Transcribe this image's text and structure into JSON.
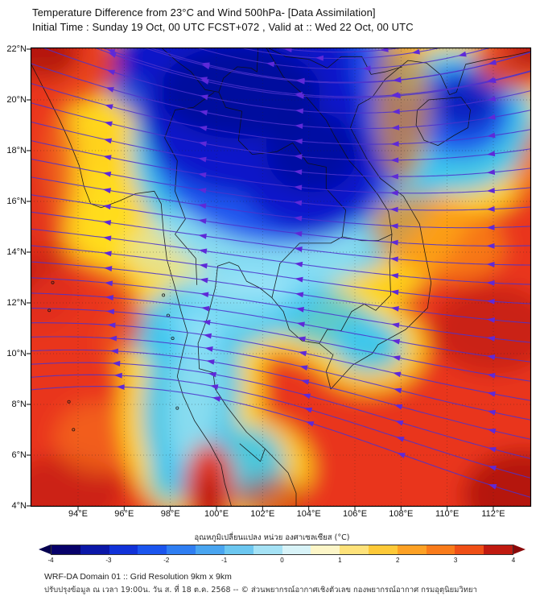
{
  "header": {
    "title_line1": "Temperature Difference from 23°C and Wind 500hPa- [Data Assimilation]",
    "title_line2": "Initial Time : Sunday 19 Oct, 00 UTC FCST+072 , Valid at ::  Wed 22 Oct, 00 UTC"
  },
  "map": {
    "lat_ticks": [
      "22°N",
      "20°N",
      "18°N",
      "16°N",
      "14°N",
      "12°N",
      "10°N",
      "8°N",
      "6°N",
      "4°N"
    ],
    "lon_ticks": [
      "94°E",
      "96°E",
      "98°E",
      "100°E",
      "102°E",
      "104°E",
      "106°E",
      "108°E",
      "110°E",
      "112°E"
    ],
    "wind_line_color": "#4c33cb",
    "wind_arrow_color": "#5e29d8",
    "coast_color": "#101010",
    "field_colors": {
      "deep_blue": "#0813c8",
      "blue": "#1c50ee",
      "cyan": "#38c6f2",
      "pale_cyan": "#cdf2fa",
      "yellow": "#ffd91e",
      "orange": "#fb8d18",
      "red": "#e9341d",
      "dark_red": "#a30e0e"
    }
  },
  "colorbar": {
    "label": "อุณหภูมิเปลี่ยนแปลง หน่วย องศาเซลเซียส (°C)",
    "tick_labels": [
      "-4",
      "-3",
      "-2",
      "-1",
      "0",
      "1",
      "2",
      "3",
      "4"
    ],
    "segment_colors": [
      "#07006a",
      "#0b17a8",
      "#1132d8",
      "#1b55ee",
      "#2f7ef2",
      "#49a5f0",
      "#6cc7f0",
      "#a5e2f5",
      "#d8f3f8",
      "#fdf6c8",
      "#fee27a",
      "#fdc938",
      "#fda124",
      "#f97b1a",
      "#ef4f16",
      "#c01a10"
    ],
    "left_arrow_color": "#05004f",
    "right_arrow_color": "#8a0909"
  },
  "footer": {
    "line1": "WRF-DA Domain 01 :: Grid Resolution 9km x 9km",
    "line2": "ปรับปรุงข้อมูล ณ เวลา 19:00น. วัน ส. ที่ 18 ต.ค. 2568 -- © ส่วนพยากรณ์อากาศเชิงตัวเลข กองพยากรณ์อากาศ กรมอุตุนิยมวิทยา"
  }
}
